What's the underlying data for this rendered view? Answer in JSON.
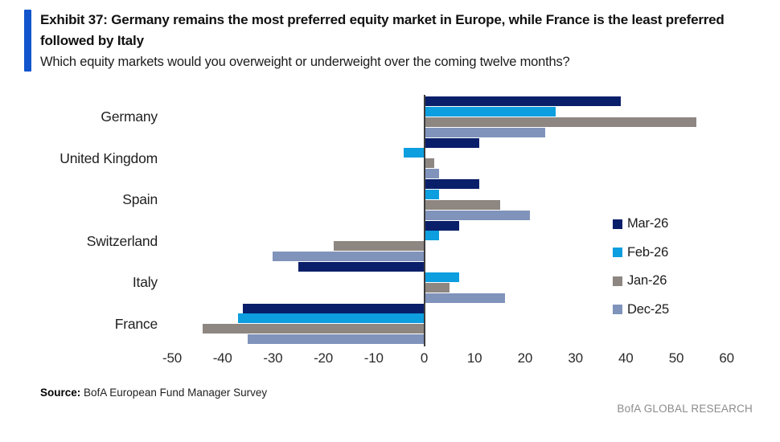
{
  "header": {
    "exhibit_title": "Exhibit 37: Germany remains the most preferred equity market in Europe, while France is the least preferred followed by Italy",
    "subtitle": "Which equity markets would you overweight or underweight over the coming twelve months?"
  },
  "chart_data": {
    "type": "bar",
    "orientation": "horizontal",
    "title": "Exhibit 37: Germany remains the most preferred equity market in Europe, while France is the least preferred followed by Italy",
    "xlabel": "",
    "ylabel": "",
    "categories": [
      "Germany",
      "United Kingdom",
      "Spain",
      "Switzerland",
      "Italy",
      "France"
    ],
    "series": [
      {
        "name": "Mar-26",
        "color": "#0a1f6a",
        "values": [
          39,
          11,
          11,
          7,
          -25,
          -36
        ]
      },
      {
        "name": "Feb-26",
        "color": "#0c9edf",
        "values": [
          26,
          -4,
          3,
          3,
          7,
          -37
        ]
      },
      {
        "name": "Jan-26",
        "color": "#8d8681",
        "values": [
          54,
          2,
          15,
          -18,
          5,
          -44
        ]
      },
      {
        "name": "Dec-25",
        "color": "#8093bb",
        "values": [
          24,
          3,
          21,
          -30,
          16,
          -35
        ]
      }
    ],
    "xticks": [
      -50,
      -40,
      -30,
      -20,
      -10,
      0,
      10,
      20,
      30,
      40,
      50,
      60
    ],
    "xlim": [
      -55,
      63
    ],
    "grid": false,
    "legend_position": "middle-right",
    "zero_axis_line": true
  },
  "footer": {
    "source_label": "Source:",
    "source_text": " BofA European Fund Manager Survey",
    "brand": "BofA GLOBAL RESEARCH"
  },
  "colors": {
    "accent_bar": "#1254cc",
    "zero_line": "#3d3d3d",
    "background": "#ffffff"
  }
}
